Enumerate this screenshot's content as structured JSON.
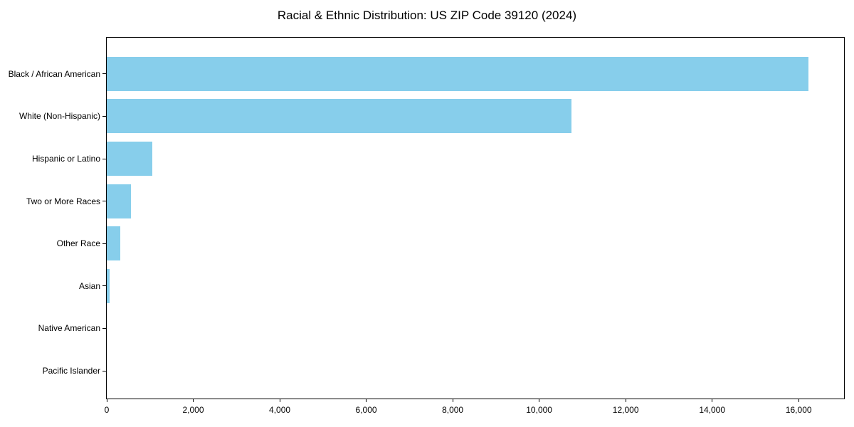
{
  "colors": {
    "bar": "#87CEEB",
    "spine": "#000000",
    "text": "#000000",
    "background": "#ffffff"
  },
  "chart_data": {
    "type": "bar",
    "orientation": "horizontal",
    "title": "Racial & Ethnic Distribution: US ZIP Code 39120 (2024)",
    "categories": [
      "Black / African American",
      "White (Non-Hispanic)",
      "Hispanic or Latino",
      "Two or More Races",
      "Other Race",
      "Asian",
      "Native American",
      "Pacific Islander"
    ],
    "values": [
      16220,
      10750,
      1050,
      560,
      310,
      60,
      0,
      0
    ],
    "xlabel": "",
    "ylabel": "",
    "xlim": [
      0,
      17050
    ],
    "x_ticks": [
      0,
      2000,
      4000,
      6000,
      8000,
      10000,
      12000,
      14000,
      16000
    ],
    "x_tick_labels": [
      "0",
      "2,000",
      "4,000",
      "6,000",
      "8,000",
      "10,000",
      "12,000",
      "14,000",
      "16,000"
    ],
    "bar_color": "#87CEEB",
    "grid": false,
    "legend": null
  }
}
